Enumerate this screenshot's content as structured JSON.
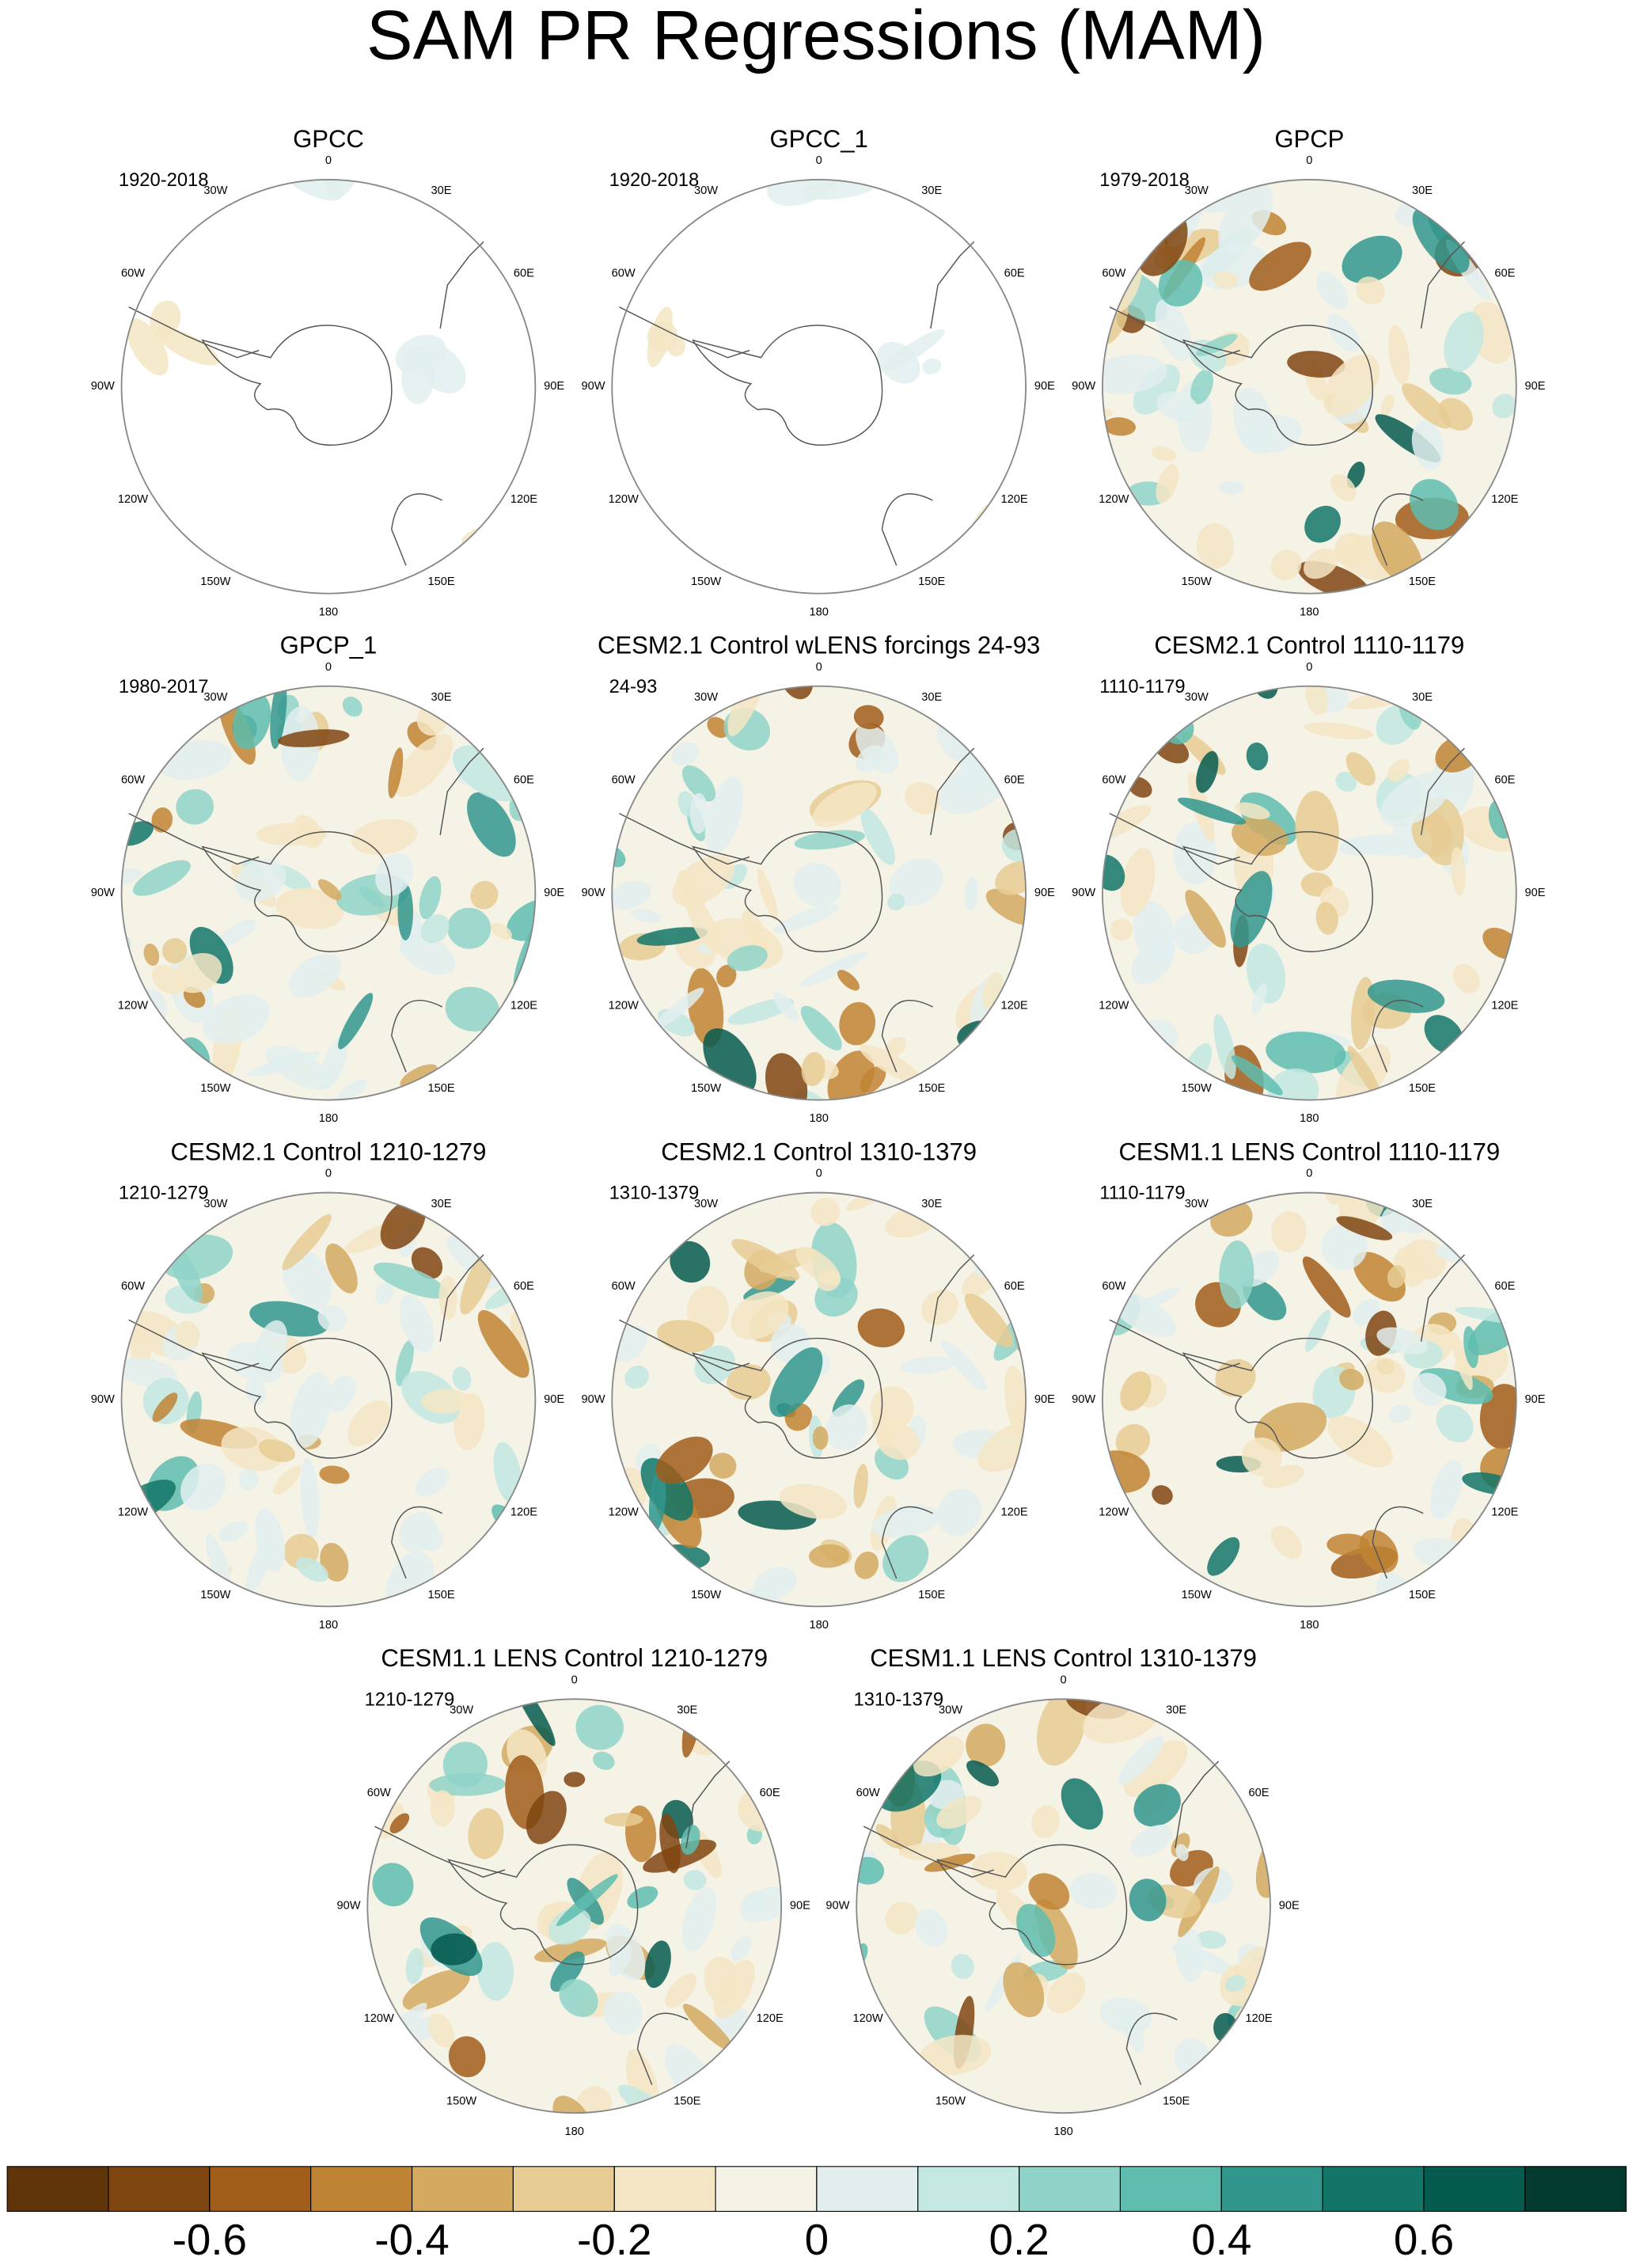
{
  "title": "SAM PR Regressions (MAM)",
  "lon_labels": [
    "0",
    "30E",
    "60E",
    "90E",
    "120E",
    "150E",
    "180",
    "150W",
    "120W",
    "90W",
    "60W",
    "30W"
  ],
  "panels": [
    {
      "title": "GPCC",
      "period": "1920-2018"
    },
    {
      "title": "GPCC_1",
      "period": "1920-2018"
    },
    {
      "title": "GPCP",
      "period": "1979-2018"
    },
    {
      "title": "GPCP_1",
      "period": "1980-2017"
    },
    {
      "title": "CESM2.1 Control wLENS forcings 24-93",
      "period": "24-93"
    },
    {
      "title": "CESM2.1 Control 1110-1179",
      "period": "1110-1179"
    },
    {
      "title": "CESM2.1 Control 1210-1279",
      "period": "1210-1279"
    },
    {
      "title": "CESM2.1 Control 1310-1379",
      "period": "1310-1379"
    },
    {
      "title": "CESM1.1 LENS Control 1110-1179",
      "period": "1110-1179"
    },
    {
      "title": "CESM1.1 LENS Control 1210-1279",
      "period": "1210-1279"
    },
    {
      "title": "CESM1.1 LENS Control 1310-1379",
      "period": "1310-1379"
    }
  ],
  "colorbar": {
    "range": [
      -0.8,
      0.8
    ],
    "ticks": [
      -0.6,
      -0.4,
      -0.2,
      0,
      0.2,
      0.4,
      0.6
    ],
    "colors": [
      "#5e3408",
      "#7f4510",
      "#a05d1a",
      "#bf8433",
      "#d4aa60",
      "#e6cc93",
      "#f4e6c4",
      "#f5f2e6",
      "#e2eeee",
      "#c3e8e2",
      "#8fd3c8",
      "#5ebdaf",
      "#31978d",
      "#127568",
      "#065b4f",
      "#033a2f"
    ]
  }
}
